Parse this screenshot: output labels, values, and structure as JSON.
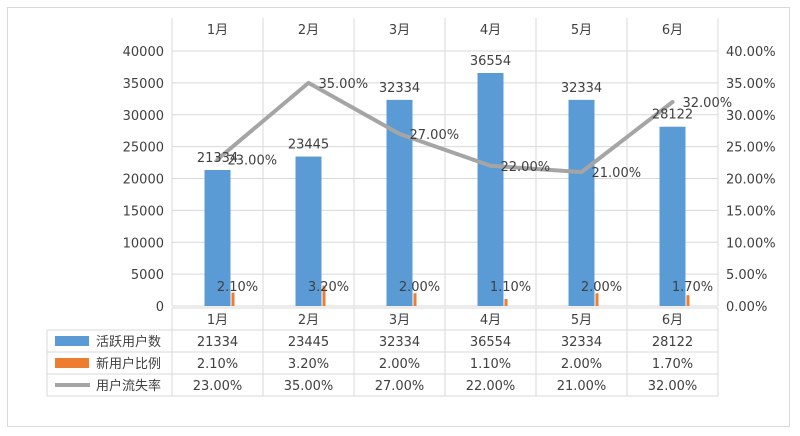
{
  "chart_data": {
    "type": "bar",
    "categories": [
      "1月",
      "2月",
      "3月",
      "4月",
      "5月",
      "6月"
    ],
    "series": [
      {
        "name": "活跃用户数",
        "type": "bar",
        "axis": "left",
        "color": "#5b9bd5",
        "values": [
          21334,
          23445,
          32334,
          36554,
          32334,
          28122
        ],
        "labels": [
          "21334",
          "23445",
          "32334",
          "36554",
          "32334",
          "28122"
        ]
      },
      {
        "name": "新用户比例",
        "type": "bar",
        "axis": "right",
        "color": "#ed7d31",
        "values": [
          0.021,
          0.032,
          0.02,
          0.011,
          0.02,
          0.017
        ],
        "labels": [
          "2.10%",
          "3.20%",
          "2.00%",
          "1.10%",
          "2.00%",
          "1.70%"
        ]
      },
      {
        "name": "用户流失率",
        "type": "line",
        "axis": "right",
        "color": "#a5a5a5",
        "values": [
          0.23,
          0.35,
          0.27,
          0.22,
          0.21,
          0.32
        ],
        "labels": [
          "23.00%",
          "35.00%",
          "27.00%",
          "22.00%",
          "21.00%",
          "32.00%"
        ]
      }
    ],
    "y_left": {
      "ylim": [
        0,
        40000
      ],
      "ticks": [
        "0",
        "5000",
        "10000",
        "15000",
        "20000",
        "25000",
        "30000",
        "35000",
        "40000"
      ]
    },
    "y_right": {
      "ylim": [
        0,
        0.4
      ],
      "ticks": [
        "0.00%",
        "5.00%",
        "10.00%",
        "15.00%",
        "20.00%",
        "25.00%",
        "30.00%",
        "35.00%",
        "40.00%"
      ]
    },
    "grid": true,
    "legend": "data-table-below"
  }
}
